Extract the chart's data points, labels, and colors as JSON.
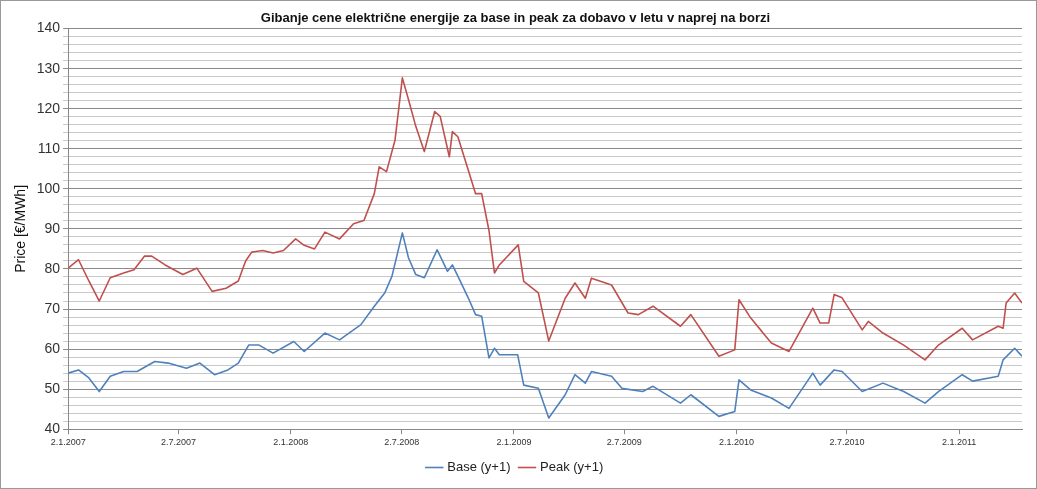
{
  "chart_data": {
    "type": "line",
    "title": "Gibanje cene električne energije za base in peak za dobavo v letu v naprej na borzi",
    "ylabel": "Price [€/MWh]",
    "xlim": [
      "2007-01-02",
      "2011-04-15"
    ],
    "xticks": [
      {
        "value": "2007-01-02",
        "label": "2.1.2007"
      },
      {
        "value": "2007-07-02",
        "label": "2.7.2007"
      },
      {
        "value": "2008-01-02",
        "label": "2.1.2008"
      },
      {
        "value": "2008-07-02",
        "label": "2.7.2008"
      },
      {
        "value": "2009-01-02",
        "label": "2.1.2009"
      },
      {
        "value": "2009-07-02",
        "label": "2.7.2009"
      },
      {
        "value": "2010-01-02",
        "label": "2.1.2010"
      },
      {
        "value": "2010-07-02",
        "label": "2.7.2010"
      },
      {
        "value": "2011-01-02",
        "label": "2.1.2011"
      }
    ],
    "ylim": [
      40,
      140
    ],
    "yticks": [
      40,
      {
        "value": 42,
        "label": null
      },
      {
        "value": 44,
        "label": null
      },
      {
        "value": 46,
        "label": null
      },
      {
        "value": 48,
        "label": null
      },
      50,
      {
        "value": 52,
        "label": null
      },
      {
        "value": 54,
        "label": null
      },
      {
        "value": 56,
        "label": null
      },
      {
        "value": 58,
        "label": null
      },
      60,
      {
        "value": 62,
        "label": null
      },
      {
        "value": 64,
        "label": null
      },
      {
        "value": 66,
        "label": null
      },
      {
        "value": 68,
        "label": null
      },
      70,
      {
        "value": 72,
        "label": null
      },
      {
        "value": 74,
        "label": null
      },
      {
        "value": 76,
        "label": null
      },
      {
        "value": 78,
        "label": null
      },
      80,
      {
        "value": 82,
        "label": null
      },
      {
        "value": 84,
        "label": null
      },
      {
        "value": 86,
        "label": null
      },
      {
        "value": 88,
        "label": null
      },
      90,
      {
        "value": 92,
        "label": null
      },
      {
        "value": 94,
        "label": null
      },
      {
        "value": 96,
        "label": null
      },
      {
        "value": 98,
        "label": null
      },
      100,
      {
        "value": 102,
        "label": null
      },
      {
        "value": 104,
        "label": null
      },
      {
        "value": 106,
        "label": null
      },
      {
        "value": 108,
        "label": null
      },
      110,
      {
        "value": 112,
        "label": null
      },
      {
        "value": 114,
        "label": null
      },
      {
        "value": 116,
        "label": null
      },
      {
        "value": 118,
        "label": null
      },
      120,
      {
        "value": 122,
        "label": null
      },
      {
        "value": 124,
        "label": null
      },
      {
        "value": 126,
        "label": null
      },
      {
        "value": 128,
        "label": null
      },
      130,
      {
        "value": 132,
        "label": null
      },
      {
        "value": 134,
        "label": null
      },
      {
        "value": 136,
        "label": null
      },
      {
        "value": 138,
        "label": null
      },
      140
    ],
    "grid": "y",
    "legend": "bottom",
    "marker": "none",
    "line_style": "solid",
    "series": [
      {
        "name": "Base (y+1)",
        "color": "#4f81bd",
        "x": [
          "2007-01-02",
          "2007-01-19",
          "2007-02-05",
          "2007-02-22",
          "2007-03-12",
          "2007-04-03",
          "2007-04-25",
          "2007-05-24",
          "2007-06-15",
          "2007-07-15",
          "2007-08-06",
          "2007-08-30",
          "2007-09-21",
          "2007-10-08",
          "2007-10-25",
          "2007-11-11",
          "2007-12-04",
          "2008-01-07",
          "2008-01-24",
          "2008-02-27",
          "2008-03-22",
          "2008-04-26",
          "2008-05-18",
          "2008-06-04",
          "2008-06-16",
          "2008-07-03",
          "2008-07-13",
          "2008-07-25",
          "2008-08-08",
          "2008-08-29",
          "2008-09-15",
          "2008-09-23",
          "2008-10-02",
          "2008-10-19",
          "2008-10-31",
          "2008-11-10",
          "2008-11-22",
          "2008-12-01",
          "2008-12-09",
          "2009-01-08",
          "2009-01-18",
          "2009-02-11",
          "2009-02-28",
          "2009-03-27",
          "2009-04-12",
          "2009-04-29",
          "2009-05-09",
          "2009-06-11",
          "2009-06-28",
          "2009-08-01",
          "2009-08-18",
          "2009-10-02",
          "2009-10-19",
          "2009-12-04",
          "2009-12-30",
          "2010-01-06",
          "2010-01-25",
          "2010-02-28",
          "2010-03-29",
          "2010-05-07",
          "2010-05-19",
          "2010-06-11",
          "2010-06-24",
          "2010-07-27",
          "2010-08-30",
          "2010-10-03",
          "2010-11-07",
          "2010-11-29",
          "2011-01-07",
          "2011-01-24",
          "2011-03-07",
          "2011-03-15",
          "2011-04-03",
          "2011-04-15"
        ],
        "values": [
          54,
          54.8,
          52.8,
          49.4,
          53.2,
          54.4,
          54.4,
          56.9,
          56.5,
          55.2,
          56.5,
          53.6,
          54.8,
          56.5,
          61,
          61,
          59,
          61.9,
          59.4,
          64,
          62.3,
          66.1,
          70.7,
          74,
          78.2,
          89,
          82.8,
          78.6,
          77.8,
          84.8,
          79.4,
          81,
          78.2,
          72.8,
          68.6,
          68.2,
          57.8,
          60.2,
          58.6,
          58.6,
          51,
          50.2,
          42.8,
          48.6,
          53.6,
          51.5,
          54.4,
          53.2,
          50.2,
          49.4,
          50.7,
          46.5,
          48.6,
          43.2,
          44.4,
          52.3,
          49.8,
          47.8,
          45.2,
          54,
          51,
          54.8,
          54.4,
          49.4,
          51.5,
          49.4,
          46.5,
          49.4,
          53.6,
          52,
          53.2,
          57.3,
          60.2,
          58.2
        ]
      },
      {
        "name": "Peak (y+1)",
        "color": "#c0504d",
        "x": [
          "2007-01-02",
          "2007-01-19",
          "2007-02-05",
          "2007-02-22",
          "2007-03-12",
          "2007-04-03",
          "2007-04-20",
          "2007-05-07",
          "2007-05-19",
          "2007-06-10",
          "2007-07-09",
          "2007-08-01",
          "2007-08-26",
          "2007-09-18",
          "2007-10-08",
          "2007-10-20",
          "2007-10-30",
          "2007-11-17",
          "2007-12-04",
          "2007-12-21",
          "2008-01-10",
          "2008-01-24",
          "2008-02-10",
          "2008-02-27",
          "2008-03-22",
          "2008-04-14",
          "2008-05-01",
          "2008-05-18",
          "2008-05-26",
          "2008-06-07",
          "2008-06-21",
          "2008-07-03",
          "2008-07-13",
          "2008-07-25",
          "2008-08-08",
          "2008-08-25",
          "2008-09-03",
          "2008-09-18",
          "2008-09-23",
          "2008-10-02",
          "2008-10-19",
          "2008-10-31",
          "2008-11-10",
          "2008-11-22",
          "2008-12-01",
          "2008-12-09",
          "2009-01-09",
          "2009-01-18",
          "2009-02-11",
          "2009-02-28",
          "2009-03-27",
          "2009-04-12",
          "2009-04-29",
          "2009-05-09",
          "2009-06-11",
          "2009-07-08",
          "2009-07-25",
          "2009-08-18",
          "2009-10-02",
          "2009-10-19",
          "2009-12-04",
          "2009-12-30",
          "2010-01-06",
          "2010-01-25",
          "2010-02-28",
          "2010-03-29",
          "2010-05-07",
          "2010-05-19",
          "2010-06-02",
          "2010-06-11",
          "2010-06-24",
          "2010-07-27",
          "2010-08-06",
          "2010-08-30",
          "2010-10-03",
          "2010-11-07",
          "2010-11-29",
          "2011-01-07",
          "2011-01-24",
          "2011-03-07",
          "2011-03-15",
          "2011-03-20",
          "2011-04-03",
          "2011-04-15"
        ],
        "values": [
          80.2,
          82.3,
          77,
          72,
          77.8,
          79,
          79.8,
          83.2,
          83.2,
          81,
          78.6,
          80.2,
          74.4,
          75.2,
          77,
          82,
          84.2,
          84.6,
          84,
          84.6,
          87.5,
          85.9,
          85,
          89.2,
          87.5,
          91.3,
          92.1,
          98.8,
          105.5,
          104.3,
          112.2,
          127.7,
          122.3,
          115.6,
          109.3,
          119.3,
          118.1,
          108,
          114.3,
          113,
          104.7,
          98.8,
          98.8,
          89.6,
          79,
          81,
          86,
          76.9,
          74,
          62,
          72.7,
          76.5,
          72.7,
          77.7,
          76,
          69,
          68.6,
          70.7,
          65.7,
          68.6,
          58.2,
          59.8,
          72.3,
          67.8,
          61.5,
          59.4,
          70.2,
          66.5,
          66.5,
          73.6,
          72.8,
          64.8,
          66.9,
          64,
          61,
          57.3,
          61,
          65.2,
          62.3,
          65.7,
          65.2,
          71.5,
          74,
          71.5
        ]
      }
    ]
  }
}
